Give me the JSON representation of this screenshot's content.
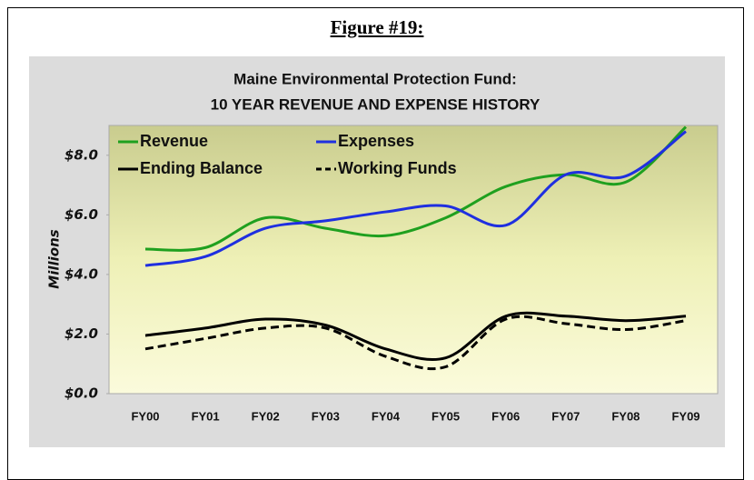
{
  "figure_label": "Figure #19:",
  "chart_data": {
    "type": "line",
    "title": "Maine Environmental Protection Fund:",
    "subtitle": "10 YEAR REVENUE AND EXPENSE HISTORY",
    "y_label": "Millions",
    "categories": [
      "FY00",
      "FY01",
      "FY02",
      "FY03",
      "FY04",
      "FY05",
      "FY06",
      "FY07",
      "FY08",
      "FY09"
    ],
    "series": [
      {
        "name": "Revenue",
        "color": "#1fa01f",
        "dashed": false,
        "values": [
          4.85,
          4.9,
          5.9,
          5.55,
          5.3,
          5.9,
          6.95,
          7.35,
          7.1,
          8.95
        ]
      },
      {
        "name": "Expenses",
        "color": "#1f2fe0",
        "dashed": false,
        "values": [
          4.3,
          4.6,
          5.55,
          5.8,
          6.1,
          6.3,
          5.65,
          7.35,
          7.3,
          8.8
        ]
      },
      {
        "name": "Ending Balance",
        "color": "#000000",
        "dashed": false,
        "values": [
          1.95,
          2.2,
          2.5,
          2.3,
          1.5,
          1.2,
          2.6,
          2.6,
          2.45,
          2.6
        ]
      },
      {
        "name": "Working Funds",
        "color": "#000000",
        "dashed": true,
        "values": [
          1.5,
          1.85,
          2.2,
          2.2,
          1.25,
          0.9,
          2.5,
          2.35,
          2.15,
          2.45
        ]
      }
    ],
    "ylim": [
      0,
      9
    ],
    "yticks": [
      {
        "value": 0,
        "label": "$0.0"
      },
      {
        "value": 2,
        "label": "$2.0"
      },
      {
        "value": 4,
        "label": "$4.0"
      },
      {
        "value": 6,
        "label": "$6.0"
      },
      {
        "value": 8,
        "label": "$8.0"
      }
    ],
    "grid": false,
    "smooth": true,
    "legend": "top-left"
  }
}
